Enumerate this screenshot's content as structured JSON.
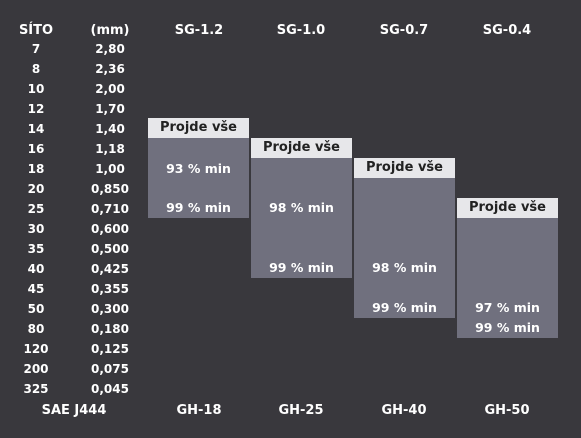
{
  "header": {
    "sieve": "SÍTO",
    "unit": "(mm)",
    "grades": [
      "SG-1.2",
      "SG-1.0",
      "SG-0.7",
      "SG-0.4"
    ]
  },
  "sieves": [
    {
      "size": "7",
      "mm": "2,80"
    },
    {
      "size": "8",
      "mm": "2,36"
    },
    {
      "size": "10",
      "mm": "2,00"
    },
    {
      "size": "12",
      "mm": "1,70"
    },
    {
      "size": "14",
      "mm": "1,40"
    },
    {
      "size": "16",
      "mm": "1,18"
    },
    {
      "size": "18",
      "mm": "1,00"
    },
    {
      "size": "20",
      "mm": "0,850"
    },
    {
      "size": "25",
      "mm": "0,710"
    },
    {
      "size": "30",
      "mm": "0,600"
    },
    {
      "size": "35",
      "mm": "0,500"
    },
    {
      "size": "40",
      "mm": "0,425"
    },
    {
      "size": "45",
      "mm": "0,355"
    },
    {
      "size": "50",
      "mm": "0,300"
    },
    {
      "size": "80",
      "mm": "0,180"
    },
    {
      "size": "120",
      "mm": "0,125"
    },
    {
      "size": "200",
      "mm": "0,075"
    },
    {
      "size": "325",
      "mm": "0,045"
    }
  ],
  "grades": [
    {
      "pass": "Projde vše",
      "min1": "93 % min",
      "min2": "99 % min"
    },
    {
      "pass": "Projde vše",
      "min1": "98 % min",
      "min2": "99 % min"
    },
    {
      "pass": "Projde vše",
      "min1": "98 % min",
      "min2": "99 % min"
    },
    {
      "pass": "Projde vše",
      "min1": "97 % min",
      "min2": "99 % min"
    }
  ],
  "footer": {
    "standard": "SAE J444",
    "codes": [
      "GH-18",
      "GH-25",
      "GH-40",
      "GH-50"
    ]
  }
}
